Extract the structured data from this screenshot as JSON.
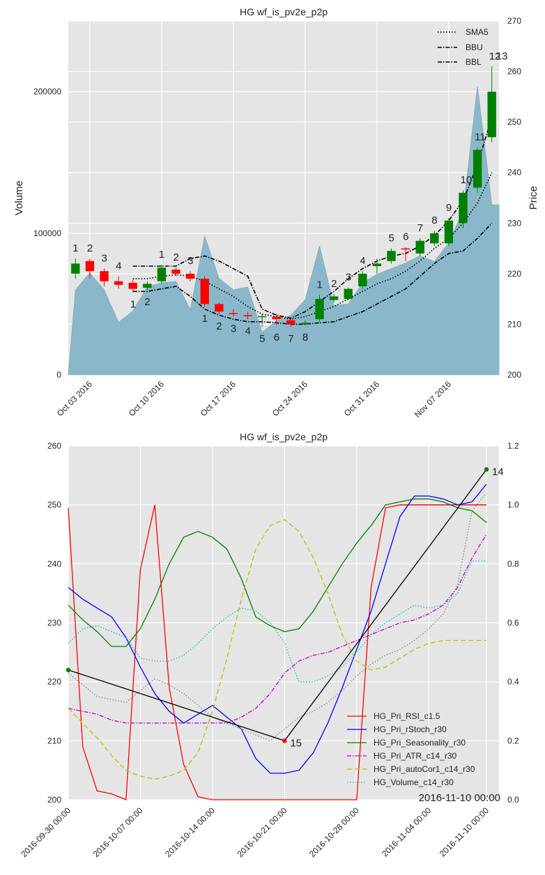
{
  "chart_data": [
    {
      "type": "candlestick",
      "title": "HG wf_is_pv2e_p2p",
      "ylabel_left": "Volume",
      "ylabel_right": "Price",
      "grid": true,
      "legend": {
        "placement": "top-right",
        "entries": [
          "SMA5",
          "BBU",
          "BBL"
        ]
      },
      "dates": [
        "2016-09-30",
        "2016-10-03",
        "2016-10-04",
        "2016-10-05",
        "2016-10-06",
        "2016-10-07",
        "2016-10-10",
        "2016-10-11",
        "2016-10-12",
        "2016-10-13",
        "2016-10-14",
        "2016-10-17",
        "2016-10-18",
        "2016-10-19",
        "2016-10-20",
        "2016-10-21",
        "2016-10-24",
        "2016-10-25",
        "2016-10-26",
        "2016-10-27",
        "2016-10-28",
        "2016-10-31",
        "2016-11-01",
        "2016-11-02",
        "2016-11-03",
        "2016-11-04",
        "2016-11-07",
        "2016-11-08",
        "2016-11-09",
        "2016-11-10"
      ],
      "x_ticks": [
        {
          "date": "2016-10-03",
          "label": "Oct 03 2016"
        },
        {
          "date": "2016-10-10",
          "label": "Oct 10 2016"
        },
        {
          "date": "2016-10-17",
          "label": "Oct 17 2016"
        },
        {
          "date": "2016-10-24",
          "label": "Oct 24 2016"
        },
        {
          "date": "2016-10-31",
          "label": "Oct 31 2016"
        },
        {
          "date": "2016-11-07",
          "label": "Nov 07 2016"
        }
      ],
      "volume": {
        "ylim": [
          0,
          250000
        ],
        "ticks": [
          {
            "v": 0,
            "label": "0"
          },
          {
            "v": 100000,
            "label": "100000"
          },
          {
            "v": 200000,
            "label": "200000"
          }
        ],
        "values": [
          60000,
          72000,
          60000,
          37000,
          45000,
          62000,
          65000,
          66000,
          46000,
          98000,
          68000,
          60000,
          62000,
          30000,
          38000,
          42000,
          53000,
          91000,
          49000,
          50000,
          65000,
          71000,
          75000,
          79000,
          84000,
          80000,
          93000,
          116000,
          204000,
          120000
        ]
      },
      "price": {
        "ylim": [
          200,
          270
        ],
        "ticks": [
          {
            "v": 200,
            "label": "200"
          },
          {
            "v": 210,
            "label": "210"
          },
          {
            "v": 220,
            "label": "220"
          },
          {
            "v": 230,
            "label": "230"
          },
          {
            "v": 240,
            "label": "240"
          },
          {
            "v": 250,
            "label": "250"
          },
          {
            "v": 260,
            "label": "260"
          },
          {
            "v": 270,
            "label": "270"
          }
        ],
        "candles": [
          {
            "o": 220.0,
            "c": 222.0,
            "h": 223.0,
            "l": 219.0
          },
          {
            "o": 222.5,
            "c": 220.5,
            "h": 223.0,
            "l": 219.0
          },
          {
            "o": 220.5,
            "c": 218.5,
            "h": 221.0,
            "l": 217.5
          },
          {
            "o": 218.5,
            "c": 217.8,
            "h": 219.5,
            "l": 217.0
          },
          {
            "o": 218.2,
            "c": 217.0,
            "h": 218.8,
            "l": 216.3
          },
          {
            "o": 217.2,
            "c": 218.0,
            "h": 218.5,
            "l": 216.8
          },
          {
            "o": 218.5,
            "c": 221.2,
            "h": 221.8,
            "l": 218.0
          },
          {
            "o": 220.8,
            "c": 220.0,
            "h": 221.2,
            "l": 219.5
          },
          {
            "o": 220.0,
            "c": 219.0,
            "h": 220.5,
            "l": 218.5
          },
          {
            "o": 219.0,
            "c": 214.0,
            "h": 219.5,
            "l": 213.5
          },
          {
            "o": 214.0,
            "c": 212.5,
            "h": 214.3,
            "l": 212.0
          },
          {
            "o": 212.2,
            "c": 212.0,
            "h": 213.0,
            "l": 211.5
          },
          {
            "o": 211.8,
            "c": 211.7,
            "h": 212.5,
            "l": 211.0
          },
          {
            "o": 211.5,
            "c": 211.6,
            "h": 212.0,
            "l": 209.5
          },
          {
            "o": 211.5,
            "c": 211.0,
            "h": 212.0,
            "l": 209.8
          },
          {
            "o": 210.8,
            "c": 210.0,
            "h": 211.0,
            "l": 209.5
          },
          {
            "o": 210.0,
            "c": 210.3,
            "h": 210.8,
            "l": 209.8
          },
          {
            "o": 211.0,
            "c": 215.0,
            "h": 215.8,
            "l": 210.5
          },
          {
            "o": 214.8,
            "c": 215.5,
            "h": 216.0,
            "l": 214.3
          },
          {
            "o": 215.0,
            "c": 217.0,
            "h": 217.3,
            "l": 214.8
          },
          {
            "o": 217.5,
            "c": 220.0,
            "h": 220.5,
            "l": 217.0
          },
          {
            "o": 221.5,
            "c": 222.0,
            "h": 223.0,
            "l": 220.0
          },
          {
            "o": 222.5,
            "c": 224.5,
            "h": 225.0,
            "l": 222.0
          },
          {
            "o": 225.0,
            "c": 224.8,
            "h": 225.3,
            "l": 222.5
          },
          {
            "o": 224.0,
            "c": 226.5,
            "h": 227.0,
            "l": 223.5
          },
          {
            "o": 226.0,
            "c": 228.0,
            "h": 228.5,
            "l": 225.5
          },
          {
            "o": 226.0,
            "c": 230.5,
            "h": 231.0,
            "l": 225.5
          },
          {
            "o": 230.0,
            "c": 236.0,
            "h": 236.5,
            "l": 229.0
          },
          {
            "o": 237.0,
            "c": 244.5,
            "h": 245.0,
            "l": 236.0
          },
          {
            "o": 247.0,
            "c": 256.0,
            "h": 261.0,
            "l": 246.0
          }
        ],
        "sma5": [
          null,
          null,
          null,
          null,
          219.0,
          219.0,
          219.5,
          219.8,
          219.5,
          218.5,
          217.0,
          215.5,
          213.5,
          212.0,
          211.5,
          211.0,
          211.5,
          212.5,
          213.5,
          215.0,
          216.5,
          218.0,
          219.0,
          220.5,
          222.5,
          225.0,
          227.0,
          230.0,
          234.0,
          240.0
        ],
        "bbu": [
          null,
          null,
          null,
          null,
          221.5,
          221.5,
          221.5,
          221.5,
          223.0,
          223.5,
          222.5,
          221.0,
          219.5,
          213.0,
          211.8,
          211.2,
          212.5,
          214.5,
          216.5,
          219.0,
          221.0,
          222.5,
          223.5,
          224.0,
          225.5,
          227.5,
          230.5,
          234.5,
          241.5,
          251.0
        ],
        "bbl": [
          null,
          null,
          null,
          null,
          216.5,
          216.5,
          217.0,
          217.5,
          215.5,
          213.0,
          211.8,
          211.0,
          210.5,
          210.5,
          210.3,
          210.0,
          210.0,
          210.3,
          210.5,
          211.5,
          212.5,
          214.0,
          215.5,
          217.0,
          219.5,
          222.0,
          224.0,
          224.5,
          227.0,
          230.0
        ],
        "labels": [
          {
            "i": 0,
            "t": "1",
            "pos": "above"
          },
          {
            "i": 1,
            "t": "2",
            "pos": "above"
          },
          {
            "i": 2,
            "t": "3",
            "pos": "above"
          },
          {
            "i": 3,
            "t": "4",
            "pos": "above"
          },
          {
            "i": 4,
            "t": "1",
            "pos": "below"
          },
          {
            "i": 5,
            "t": "2",
            "pos": "below"
          },
          {
            "i": 6,
            "t": "1",
            "pos": "above"
          },
          {
            "i": 7,
            "t": "2",
            "pos": "above"
          },
          {
            "i": 8,
            "t": "3",
            "pos": "above"
          },
          {
            "i": 9,
            "t": "1",
            "pos": "below"
          },
          {
            "i": 10,
            "t": "2",
            "pos": "below"
          },
          {
            "i": 11,
            "t": "3",
            "pos": "below"
          },
          {
            "i": 12,
            "t": "4",
            "pos": "below"
          },
          {
            "i": 13,
            "t": "5",
            "pos": "below"
          },
          {
            "i": 14,
            "t": "6",
            "pos": "below"
          },
          {
            "i": 15,
            "t": "7",
            "pos": "below"
          },
          {
            "i": 16,
            "t": "8",
            "pos": "below"
          },
          {
            "i": 17,
            "t": "1",
            "pos": "above"
          },
          {
            "i": 18,
            "t": "2",
            "pos": "above"
          },
          {
            "i": 19,
            "t": "3",
            "pos": "above"
          },
          {
            "i": 20,
            "t": "4",
            "pos": "above"
          },
          {
            "i": 22,
            "t": "5",
            "pos": "above"
          },
          {
            "i": 23,
            "t": "6",
            "pos": "above"
          },
          {
            "i": 24,
            "t": "7",
            "pos": "above"
          },
          {
            "i": 25,
            "t": "8",
            "pos": "above"
          },
          {
            "i": 26,
            "t": "9",
            "pos": "above"
          },
          {
            "i": 27,
            "t": "10",
            "pos": "above"
          },
          {
            "i": 28,
            "t": "11",
            "pos": "above"
          },
          {
            "i": 29,
            "t": "12",
            "pos": "above"
          },
          {
            "i": 30,
            "t": "13",
            "pos": "above"
          }
        ]
      }
    },
    {
      "type": "line",
      "title": "HG wf_is_pv2e_p2p",
      "grid": true,
      "legend": {
        "placement": "lower-right"
      },
      "x_ticks": [
        "2016-09-30 00:00",
        "2016-10-07 00:00",
        "2016-10-14 00:00",
        "2016-10-21 00:00",
        "2016-10-28 00:00",
        "2016-11-04 00:00",
        "2016-11-10 00:00"
      ],
      "x_tick_index": [
        0,
        5,
        10,
        15,
        20,
        25,
        29
      ],
      "corner_text": "2016-11-10 00:00",
      "ylim_left": [
        200,
        260
      ],
      "yticks_left": [
        "200",
        "210",
        "220",
        "230",
        "240",
        "250",
        "260"
      ],
      "ylim_right": [
        0.0,
        1.2
      ],
      "yticks_right": [
        "0.0",
        "0.2",
        "0.4",
        "0.6",
        "0.8",
        "1.0",
        "1.2"
      ],
      "series": [
        {
          "name": "HG_Pri_RSI_c1.5",
          "color": "#ff0000",
          "style": "solid",
          "values": [
            0.99,
            0.18,
            0.03,
            0.02,
            0.0,
            0.78,
            1.0,
            0.38,
            0.12,
            0.01,
            0.0,
            0.0,
            0.0,
            0.0,
            0.0,
            0.0,
            0.0,
            0.0,
            0.0,
            0.0,
            0.0,
            0.72,
            0.99,
            1.0,
            1.0,
            1.0,
            1.0,
            1.0,
            1.0,
            1.0
          ]
        },
        {
          "name": "HG_Pri_rStoch_r30",
          "color": "#0000ff",
          "style": "solid",
          "values": [
            0.72,
            0.68,
            0.65,
            0.62,
            0.55,
            0.45,
            0.36,
            0.3,
            0.26,
            0.29,
            0.32,
            0.28,
            0.24,
            0.14,
            0.09,
            0.09,
            0.1,
            0.16,
            0.26,
            0.38,
            0.51,
            0.64,
            0.8,
            0.96,
            1.03,
            1.03,
            1.02,
            1.0,
            1.01,
            1.07
          ]
        },
        {
          "name": "HG_Pri_Seasonality_r30",
          "color": "#008000",
          "style": "solid",
          "values": [
            0.66,
            0.61,
            0.57,
            0.52,
            0.52,
            0.58,
            0.68,
            0.8,
            0.89,
            0.91,
            0.89,
            0.85,
            0.75,
            0.62,
            0.59,
            0.57,
            0.58,
            0.64,
            0.72,
            0.8,
            0.87,
            0.93,
            1.0,
            1.01,
            1.02,
            1.02,
            1.01,
            0.99,
            0.98,
            0.94
          ]
        },
        {
          "name": "HG_Pri_ATR_c14_r30",
          "color": "#bf00bf",
          "style": "dashdot",
          "values": [
            0.31,
            0.3,
            0.29,
            0.27,
            0.26,
            0.26,
            0.26,
            0.26,
            0.26,
            0.26,
            0.26,
            0.26,
            0.28,
            0.31,
            0.36,
            0.43,
            0.47,
            0.49,
            0.5,
            0.52,
            0.54,
            0.56,
            0.58,
            0.6,
            0.61,
            0.63,
            0.66,
            0.72,
            0.82,
            0.9
          ]
        },
        {
          "name": "HG_Pri_autoCor1_c14_r30",
          "color": "#bfbf00",
          "style": "dashed",
          "values": [
            0.31,
            0.26,
            0.21,
            0.15,
            0.1,
            0.08,
            0.07,
            0.08,
            0.1,
            0.16,
            0.3,
            0.48,
            0.68,
            0.85,
            0.93,
            0.95,
            0.91,
            0.82,
            0.7,
            0.56,
            0.47,
            0.44,
            0.45,
            0.48,
            0.51,
            0.53,
            0.54,
            0.54,
            0.54,
            0.54
          ]
        },
        {
          "name": "HG_Volume_c14_r30",
          "color": "#00bfbf",
          "style": "dotted",
          "values": [
            0.53,
            0.58,
            0.59,
            0.57,
            0.55,
            0.48,
            0.47,
            0.47,
            0.49,
            0.53,
            0.58,
            0.62,
            0.65,
            0.64,
            0.6,
            0.53,
            0.4,
            0.4,
            0.42,
            0.45,
            0.5,
            0.56,
            0.6,
            0.63,
            0.66,
            0.65,
            0.66,
            0.7,
            0.81,
            0.81
          ]
        },
        {
          "name": "",
          "color": "#808080",
          "style": "dotted",
          "values": [
            0.43,
            0.39,
            0.35,
            0.34,
            0.33,
            0.37,
            0.41,
            0.39,
            0.36,
            0.32,
            0.28,
            0.26,
            0.24,
            0.22,
            0.2,
            0.24,
            0.28,
            0.3,
            0.33,
            0.37,
            0.42,
            0.46,
            0.49,
            0.51,
            0.54,
            0.58,
            0.63,
            0.73,
            0.98,
            1.04
          ]
        }
      ],
      "price_line": {
        "color": "#000000",
        "points": [
          {
            "i": 0,
            "v": 222
          },
          {
            "i": 15,
            "v": 210
          },
          {
            "i": 29,
            "v": 256
          }
        ]
      },
      "markers": [
        {
          "i": 0,
          "v": 222,
          "color": "#008000",
          "label": ""
        },
        {
          "i": 15,
          "v": 210,
          "color": "#ff0000",
          "label": "15"
        },
        {
          "i": 29,
          "v": 256,
          "color": "#008000",
          "label": "14"
        }
      ]
    }
  ]
}
